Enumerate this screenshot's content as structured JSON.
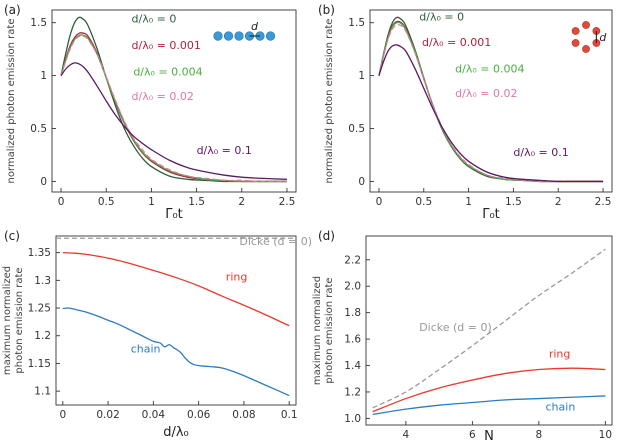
{
  "colors": {
    "green": "#2e5e3e",
    "dark_red": "#b3213e",
    "light_green": "#4cae3f",
    "pink": "#d87aa8",
    "purple": "#5a1a63",
    "ring_red": "#e8392e",
    "chain_blue": "#2c7cc2",
    "dicke_gray": "#999999",
    "chain_atom_blue": "#3a9ad9",
    "ring_atom_red": "#e04a3a",
    "axis": "#333333"
  },
  "chart_data": [
    {
      "id": "a",
      "panel_label": "(a)",
      "type": "line",
      "xlabel": "Γ₀t",
      "ylabel": "normalized photon emission rate",
      "xlim": [
        -0.1,
        2.6
      ],
      "ylim": [
        -0.1,
        1.62
      ],
      "xticks": [
        0,
        0.5,
        1,
        1.5,
        2,
        2.5
      ],
      "xtick_labels": [
        "0",
        "0.5",
        "1",
        "1.5",
        "2",
        "2.5"
      ],
      "yticks": [
        0,
        0.5,
        1,
        1.5
      ],
      "ytick_labels": [
        "0",
        "0.5",
        "1",
        "1.5"
      ],
      "inset": {
        "geometry": "chain",
        "label": "d"
      },
      "series": [
        {
          "name": "d/λ0 = 0",
          "color_key": "green",
          "dash": false,
          "x": [
            0,
            0.05,
            0.1,
            0.15,
            0.2,
            0.25,
            0.3,
            0.4,
            0.5,
            0.6,
            0.7,
            0.8,
            0.9,
            1.0,
            1.2,
            1.4,
            1.6,
            1.8,
            2.0,
            2.2,
            2.5
          ],
          "y": [
            1.0,
            1.2,
            1.38,
            1.5,
            1.55,
            1.53,
            1.47,
            1.25,
            0.98,
            0.72,
            0.5,
            0.34,
            0.22,
            0.14,
            0.05,
            0.02,
            0.01,
            0.0,
            0.0,
            0.0,
            0.0
          ]
        },
        {
          "name": "d/λ0 = 0.001",
          "color_key": "dark_red",
          "dash": false,
          "x": [
            0,
            0.05,
            0.1,
            0.15,
            0.2,
            0.25,
            0.3,
            0.4,
            0.5,
            0.6,
            0.7,
            0.8,
            0.9,
            1.0,
            1.2,
            1.4,
            1.6,
            1.8,
            2.0,
            2.2,
            2.5
          ],
          "y": [
            1.0,
            1.15,
            1.28,
            1.36,
            1.4,
            1.4,
            1.37,
            1.21,
            0.98,
            0.75,
            0.55,
            0.39,
            0.27,
            0.19,
            0.09,
            0.04,
            0.02,
            0.01,
            0.0,
            0.0,
            0.0
          ]
        },
        {
          "name": "d/λ0 = 0.004",
          "color_key": "light_green",
          "dash": false,
          "x": [
            0,
            0.05,
            0.1,
            0.15,
            0.2,
            0.25,
            0.3,
            0.4,
            0.5,
            0.6,
            0.7,
            0.8,
            0.9,
            1.0,
            1.2,
            1.4,
            1.6,
            1.8,
            2.0,
            2.2,
            2.5
          ],
          "y": [
            1.0,
            1.14,
            1.26,
            1.34,
            1.38,
            1.38,
            1.35,
            1.2,
            0.98,
            0.76,
            0.56,
            0.4,
            0.28,
            0.2,
            0.1,
            0.05,
            0.02,
            0.01,
            0.0,
            0.0,
            0.0
          ]
        },
        {
          "name": "d/λ0 = 0.02",
          "color_key": "pink",
          "dash": true,
          "x": [
            0,
            0.05,
            0.1,
            0.15,
            0.2,
            0.25,
            0.3,
            0.4,
            0.5,
            0.6,
            0.7,
            0.8,
            0.9,
            1.0,
            1.2,
            1.4,
            1.6,
            1.8,
            2.0,
            2.2,
            2.5
          ],
          "y": [
            1.0,
            1.13,
            1.25,
            1.33,
            1.37,
            1.37,
            1.34,
            1.2,
            0.99,
            0.77,
            0.57,
            0.41,
            0.3,
            0.21,
            0.11,
            0.05,
            0.03,
            0.01,
            0.01,
            0.0,
            0.0
          ]
        },
        {
          "name": "d/λ0 = 0.1",
          "color_key": "purple",
          "dash": false,
          "x": [
            0,
            0.05,
            0.1,
            0.15,
            0.2,
            0.25,
            0.3,
            0.4,
            0.5,
            0.6,
            0.7,
            0.8,
            0.9,
            1.0,
            1.2,
            1.4,
            1.6,
            1.8,
            2.0,
            2.2,
            2.5
          ],
          "y": [
            1.0,
            1.06,
            1.1,
            1.12,
            1.11,
            1.08,
            1.03,
            0.9,
            0.76,
            0.63,
            0.52,
            0.43,
            0.36,
            0.3,
            0.2,
            0.13,
            0.09,
            0.06,
            0.04,
            0.03,
            0.02
          ]
        }
      ],
      "labels": [
        {
          "text": "d/λ₀ = 0",
          "color_key": "green",
          "x": 0.78,
          "y": 1.5
        },
        {
          "text": "d/λ₀ = 0.001",
          "color_key": "dark_red",
          "x": 0.78,
          "y": 1.25
        },
        {
          "text": "d/λ₀ = 0.004",
          "color_key": "light_green",
          "x": 0.8,
          "y": 1.0
        },
        {
          "text": "d/λ₀ = 0.02",
          "color_key": "pink",
          "x": 0.78,
          "y": 0.77
        },
        {
          "text": "d/λ₀ = 0.1",
          "color_key": "purple",
          "x": 1.5,
          "y": 0.26
        }
      ]
    },
    {
      "id": "b",
      "panel_label": "(b)",
      "type": "line",
      "xlabel": "Γ₀t",
      "ylabel": "normalized photon emission rate",
      "xlim": [
        -0.1,
        2.6
      ],
      "ylim": [
        -0.1,
        1.62
      ],
      "xticks": [
        0,
        0.5,
        1,
        1.5,
        2,
        2.5
      ],
      "xtick_labels": [
        "0",
        "0.5",
        "1",
        "1.5",
        "2",
        "2.5"
      ],
      "yticks": [
        0,
        0.5,
        1,
        1.5
      ],
      "ytick_labels": [
        "0",
        "0.5",
        "1",
        "1.5"
      ],
      "inset": {
        "geometry": "ring",
        "label": "d"
      },
      "series": [
        {
          "name": "d/λ0 = 0",
          "color_key": "green",
          "dash": false,
          "x": [
            0,
            0.05,
            0.1,
            0.15,
            0.2,
            0.25,
            0.3,
            0.4,
            0.5,
            0.6,
            0.7,
            0.8,
            0.9,
            1.0,
            1.2,
            1.4,
            1.6,
            1.8,
            2.0,
            2.2,
            2.5
          ],
          "y": [
            1.0,
            1.2,
            1.38,
            1.5,
            1.55,
            1.53,
            1.47,
            1.25,
            0.98,
            0.72,
            0.5,
            0.34,
            0.22,
            0.14,
            0.05,
            0.02,
            0.01,
            0.0,
            0.0,
            0.0,
            0.0
          ]
        },
        {
          "name": "d/λ0 = 0.001",
          "color_key": "dark_red",
          "dash": false,
          "x": [
            0,
            0.05,
            0.1,
            0.15,
            0.2,
            0.25,
            0.3,
            0.4,
            0.5,
            0.6,
            0.7,
            0.8,
            0.9,
            1.0,
            1.2,
            1.4,
            1.6,
            1.8,
            2.0,
            2.2,
            2.5
          ],
          "y": [
            1.0,
            1.19,
            1.36,
            1.47,
            1.51,
            1.5,
            1.44,
            1.23,
            0.97,
            0.72,
            0.51,
            0.35,
            0.23,
            0.15,
            0.06,
            0.02,
            0.01,
            0.0,
            0.0,
            0.0,
            0.0
          ]
        },
        {
          "name": "d/λ0 = 0.004",
          "color_key": "light_green",
          "dash": false,
          "x": [
            0,
            0.05,
            0.1,
            0.15,
            0.2,
            0.25,
            0.3,
            0.4,
            0.5,
            0.6,
            0.7,
            0.8,
            0.9,
            1.0,
            1.2,
            1.4,
            1.6,
            1.8,
            2.0,
            2.2,
            2.5
          ],
          "y": [
            1.0,
            1.19,
            1.35,
            1.46,
            1.5,
            1.49,
            1.43,
            1.23,
            0.97,
            0.72,
            0.51,
            0.35,
            0.23,
            0.15,
            0.06,
            0.02,
            0.01,
            0.0,
            0.0,
            0.0,
            0.0
          ]
        },
        {
          "name": "d/λ0 = 0.02",
          "color_key": "pink",
          "dash": true,
          "x": [
            0,
            0.05,
            0.1,
            0.15,
            0.2,
            0.25,
            0.3,
            0.4,
            0.5,
            0.6,
            0.7,
            0.8,
            0.9,
            1.0,
            1.2,
            1.4,
            1.6,
            1.8,
            2.0,
            2.2,
            2.5
          ],
          "y": [
            1.0,
            1.18,
            1.34,
            1.44,
            1.48,
            1.47,
            1.42,
            1.22,
            0.97,
            0.73,
            0.52,
            0.36,
            0.24,
            0.16,
            0.06,
            0.03,
            0.01,
            0.0,
            0.0,
            0.0,
            0.0
          ]
        },
        {
          "name": "d/λ0 = 0.1",
          "color_key": "purple",
          "dash": false,
          "x": [
            0,
            0.05,
            0.1,
            0.15,
            0.2,
            0.25,
            0.3,
            0.4,
            0.5,
            0.6,
            0.7,
            0.8,
            0.9,
            1.0,
            1.2,
            1.4,
            1.6,
            1.8,
            2.0,
            2.2,
            2.5
          ],
          "y": [
            1.0,
            1.13,
            1.23,
            1.28,
            1.29,
            1.27,
            1.23,
            1.07,
            0.88,
            0.69,
            0.52,
            0.38,
            0.27,
            0.19,
            0.09,
            0.04,
            0.02,
            0.01,
            0.0,
            0.0,
            0.0
          ]
        }
      ],
      "labels": [
        {
          "text": "d/λ₀ = 0",
          "color_key": "green",
          "x": 0.45,
          "y": 1.52
        },
        {
          "text": "d/λ₀ = 0.001",
          "color_key": "dark_red",
          "x": 0.48,
          "y": 1.28
        },
        {
          "text": "d/λ₀ = 0.004",
          "color_key": "light_green",
          "x": 0.85,
          "y": 1.03
        },
        {
          "text": "d/λ₀ = 0.02",
          "color_key": "pink",
          "x": 0.85,
          "y": 0.8
        },
        {
          "text": "d/λ₀ = 0.1",
          "color_key": "purple",
          "x": 1.5,
          "y": 0.24
        }
      ]
    },
    {
      "id": "c",
      "panel_label": "(c)",
      "type": "line",
      "xlabel": "d/λ₀",
      "ylabel_lines": [
        "maximum normalized",
        "photon emission rate"
      ],
      "xlim": [
        -0.003,
        0.103
      ],
      "ylim": [
        1.075,
        1.38
      ],
      "xticks": [
        0,
        0.02,
        0.04,
        0.06,
        0.08,
        0.1
      ],
      "xtick_labels": [
        "0",
        "0.02",
        "0.04",
        "0.06",
        "0.08",
        "0.1"
      ],
      "yticks": [
        1.1,
        1.15,
        1.2,
        1.25,
        1.3,
        1.35
      ],
      "ytick_labels": [
        "1.1",
        "1.15",
        "1.2",
        "1.25",
        "1.3",
        "1.35"
      ],
      "series": [
        {
          "name": "Dicke (d = 0)",
          "color_key": "dicke_gray",
          "dash": true,
          "x": [
            -0.003,
            0.103
          ],
          "y": [
            1.376,
            1.376
          ]
        },
        {
          "name": "ring",
          "color_key": "ring_red",
          "dash": false,
          "x": [
            0,
            0.005,
            0.01,
            0.02,
            0.03,
            0.04,
            0.05,
            0.06,
            0.07,
            0.08,
            0.09,
            0.1
          ],
          "y": [
            1.35,
            1.349,
            1.347,
            1.34,
            1.33,
            1.318,
            1.305,
            1.29,
            1.272,
            1.255,
            1.237,
            1.218
          ]
        },
        {
          "name": "chain",
          "color_key": "chain_blue",
          "dash": false,
          "x": [
            0,
            0.002,
            0.004,
            0.006,
            0.01,
            0.015,
            0.02,
            0.025,
            0.03,
            0.035,
            0.04,
            0.043,
            0.045,
            0.047,
            0.049,
            0.05,
            0.052,
            0.054,
            0.056,
            0.058,
            0.06,
            0.063,
            0.066,
            0.07,
            0.075,
            0.08,
            0.085,
            0.09,
            0.095,
            0.1
          ],
          "y": [
            1.249,
            1.25,
            1.249,
            1.247,
            1.243,
            1.236,
            1.228,
            1.22,
            1.21,
            1.2,
            1.19,
            1.187,
            1.18,
            1.184,
            1.178,
            1.176,
            1.17,
            1.16,
            1.152,
            1.148,
            1.146,
            1.145,
            1.144,
            1.142,
            1.136,
            1.128,
            1.119,
            1.11,
            1.101,
            1.092
          ]
        }
      ],
      "labels": [
        {
          "text": "Dicke (d = 0)",
          "color_key": "dicke_gray",
          "x": 0.078,
          "y": 1.364
        },
        {
          "text": "ring",
          "color_key": "ring_red",
          "x": 0.072,
          "y": 1.3
        },
        {
          "text": "chain",
          "color_key": "chain_blue",
          "x": 0.03,
          "y": 1.17
        }
      ]
    },
    {
      "id": "d",
      "panel_label": "(d)",
      "type": "line",
      "xlabel": "N",
      "ylabel_lines": [
        "maximum normalized",
        "photon emission rate"
      ],
      "xlim": [
        2.8,
        10.2
      ],
      "ylim": [
        0.95,
        2.38
      ],
      "xticks": [
        4,
        6,
        8,
        10
      ],
      "xtick_labels": [
        "4",
        "6",
        "8",
        "10"
      ],
      "yticks": [
        1.0,
        1.2,
        1.4,
        1.6,
        1.8,
        2.0,
        2.2
      ],
      "ytick_labels": [
        "1.0",
        "1.2",
        "1.4",
        "1.6",
        "1.8",
        "2.0",
        "2.2"
      ],
      "series": [
        {
          "name": "Dicke (d = 0)",
          "color_key": "dicke_gray",
          "dash": true,
          "x": [
            3,
            4,
            5,
            6,
            7,
            8,
            9,
            10
          ],
          "y": [
            1.08,
            1.2,
            1.37,
            1.55,
            1.74,
            1.93,
            2.1,
            2.28
          ]
        },
        {
          "name": "ring",
          "color_key": "ring_red",
          "dash": false,
          "x": [
            3,
            4,
            5,
            6,
            7,
            8,
            9,
            10
          ],
          "y": [
            1.05,
            1.15,
            1.23,
            1.29,
            1.34,
            1.37,
            1.38,
            1.37
          ]
        },
        {
          "name": "chain",
          "color_key": "chain_blue",
          "dash": false,
          "x": [
            3,
            4,
            5,
            6,
            7,
            8,
            9,
            10
          ],
          "y": [
            1.03,
            1.07,
            1.1,
            1.12,
            1.14,
            1.15,
            1.16,
            1.17
          ]
        }
      ],
      "labels": [
        {
          "text": "Dicke (d = 0)",
          "color_key": "dicke_gray",
          "x": 4.4,
          "y": 1.66
        },
        {
          "text": "ring",
          "color_key": "ring_red",
          "x": 8.3,
          "y": 1.46
        },
        {
          "text": "chain",
          "color_key": "chain_blue",
          "x": 8.2,
          "y": 1.06
        }
      ]
    }
  ]
}
